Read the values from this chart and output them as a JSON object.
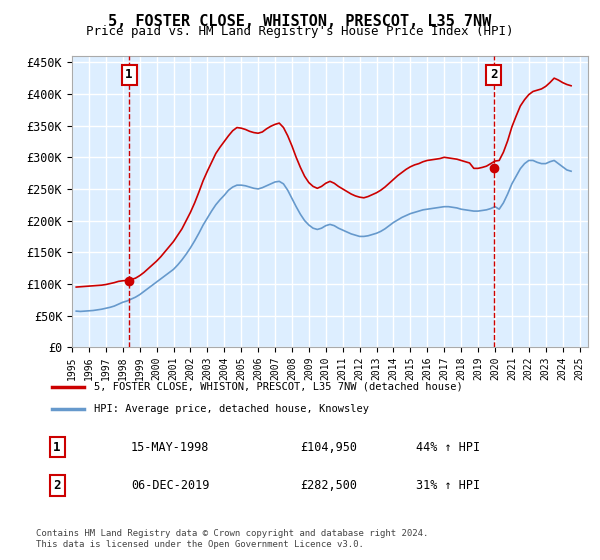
{
  "title": "5, FOSTER CLOSE, WHISTON, PRESCOT, L35 7NW",
  "subtitle": "Price paid vs. HM Land Registry's House Price Index (HPI)",
  "ylabel_format": "£{0}K",
  "yticks": [
    0,
    50000,
    100000,
    150000,
    200000,
    250000,
    300000,
    350000,
    400000,
    450000
  ],
  "ytick_labels": [
    "£0",
    "£50K",
    "£100K",
    "£150K",
    "£200K",
    "£250K",
    "£300K",
    "£350K",
    "£400K",
    "£450K"
  ],
  "xmin": 1995.0,
  "xmax": 2025.5,
  "ymin": 0,
  "ymax": 460000,
  "purchase1_date": 1998.37,
  "purchase1_price": 104950,
  "purchase1_label": "1",
  "purchase1_text": "15-MAY-1998",
  "purchase1_amount": "£104,950",
  "purchase1_hpi": "44% ↑ HPI",
  "purchase2_date": 2019.92,
  "purchase2_price": 282500,
  "purchase2_label": "2",
  "purchase2_text": "06-DEC-2019",
  "purchase2_amount": "£282,500",
  "purchase2_hpi": "31% ↑ HPI",
  "line_color_property": "#cc0000",
  "line_color_hpi": "#6699cc",
  "legend_label_property": "5, FOSTER CLOSE, WHISTON, PRESCOT, L35 7NW (detached house)",
  "legend_label_hpi": "HPI: Average price, detached house, Knowsley",
  "footer_text": "Contains HM Land Registry data © Crown copyright and database right 2024.\nThis data is licensed under the Open Government Licence v3.0.",
  "background_color": "#ddeeff",
  "plot_bg_color": "#ddeeff",
  "grid_color": "#ffffff",
  "hpi_data": {
    "years": [
      1995.25,
      1995.5,
      1995.75,
      1996.0,
      1996.25,
      1996.5,
      1996.75,
      1997.0,
      1997.25,
      1997.5,
      1997.75,
      1998.0,
      1998.25,
      1998.5,
      1998.75,
      1999.0,
      1999.25,
      1999.5,
      1999.75,
      2000.0,
      2000.25,
      2000.5,
      2000.75,
      2001.0,
      2001.25,
      2001.5,
      2001.75,
      2002.0,
      2002.25,
      2002.5,
      2002.75,
      2003.0,
      2003.25,
      2003.5,
      2003.75,
      2004.0,
      2004.25,
      2004.5,
      2004.75,
      2005.0,
      2005.25,
      2005.5,
      2005.75,
      2006.0,
      2006.25,
      2006.5,
      2006.75,
      2007.0,
      2007.25,
      2007.5,
      2007.75,
      2008.0,
      2008.25,
      2008.5,
      2008.75,
      2009.0,
      2009.25,
      2009.5,
      2009.75,
      2010.0,
      2010.25,
      2010.5,
      2010.75,
      2011.0,
      2011.25,
      2011.5,
      2011.75,
      2012.0,
      2012.25,
      2012.5,
      2012.75,
      2013.0,
      2013.25,
      2013.5,
      2013.75,
      2014.0,
      2014.25,
      2014.5,
      2014.75,
      2015.0,
      2015.25,
      2015.5,
      2015.75,
      2016.0,
      2016.25,
      2016.5,
      2016.75,
      2017.0,
      2017.25,
      2017.5,
      2017.75,
      2018.0,
      2018.25,
      2018.5,
      2018.75,
      2019.0,
      2019.25,
      2019.5,
      2019.75,
      2020.0,
      2020.25,
      2020.5,
      2020.75,
      2021.0,
      2021.25,
      2021.5,
      2021.75,
      2022.0,
      2022.25,
      2022.5,
      2022.75,
      2023.0,
      2023.25,
      2023.5,
      2023.75,
      2024.0,
      2024.25,
      2024.5
    ],
    "values": [
      57000,
      56500,
      57000,
      57500,
      58000,
      59000,
      60000,
      61500,
      63000,
      65000,
      68000,
      71000,
      73000,
      76000,
      79000,
      83000,
      88000,
      93000,
      98000,
      103000,
      108000,
      113000,
      118000,
      123000,
      130000,
      138000,
      147000,
      157000,
      168000,
      180000,
      193000,
      204000,
      215000,
      225000,
      233000,
      240000,
      248000,
      253000,
      256000,
      256000,
      255000,
      253000,
      251000,
      250000,
      252000,
      255000,
      258000,
      261000,
      262000,
      258000,
      248000,
      235000,
      222000,
      210000,
      200000,
      193000,
      188000,
      186000,
      188000,
      192000,
      194000,
      192000,
      188000,
      185000,
      182000,
      179000,
      177000,
      175000,
      175000,
      176000,
      178000,
      180000,
      183000,
      187000,
      192000,
      197000,
      201000,
      205000,
      208000,
      211000,
      213000,
      215000,
      217000,
      218000,
      219000,
      220000,
      221000,
      222000,
      222000,
      221000,
      220000,
      218000,
      217000,
      216000,
      215000,
      215000,
      216000,
      217000,
      219000,
      222000,
      218000,
      228000,
      242000,
      258000,
      270000,
      282000,
      290000,
      295000,
      295000,
      292000,
      290000,
      290000,
      293000,
      295000,
      290000,
      285000,
      280000,
      278000
    ]
  },
  "property_data": {
    "years": [
      1995.25,
      1995.5,
      1995.75,
      1996.0,
      1996.25,
      1996.5,
      1996.75,
      1997.0,
      1997.25,
      1997.5,
      1997.75,
      1998.0,
      1998.25,
      1998.5,
      1998.75,
      1999.0,
      1999.25,
      1999.5,
      1999.75,
      2000.0,
      2000.25,
      2000.5,
      2000.75,
      2001.0,
      2001.25,
      2001.5,
      2001.75,
      2002.0,
      2002.25,
      2002.5,
      2002.75,
      2003.0,
      2003.25,
      2003.5,
      2003.75,
      2004.0,
      2004.25,
      2004.5,
      2004.75,
      2005.0,
      2005.25,
      2005.5,
      2005.75,
      2006.0,
      2006.25,
      2006.5,
      2006.75,
      2007.0,
      2007.25,
      2007.5,
      2007.75,
      2008.0,
      2008.25,
      2008.5,
      2008.75,
      2009.0,
      2009.25,
      2009.5,
      2009.75,
      2010.0,
      2010.25,
      2010.5,
      2010.75,
      2011.0,
      2011.25,
      2011.5,
      2011.75,
      2012.0,
      2012.25,
      2012.5,
      2012.75,
      2013.0,
      2013.25,
      2013.5,
      2013.75,
      2014.0,
      2014.25,
      2014.5,
      2014.75,
      2015.0,
      2015.25,
      2015.5,
      2015.75,
      2016.0,
      2016.25,
      2016.5,
      2016.75,
      2017.0,
      2017.25,
      2017.5,
      2017.75,
      2018.0,
      2018.25,
      2018.5,
      2018.75,
      2019.0,
      2019.25,
      2019.5,
      2019.75,
      2020.0,
      2020.25,
      2020.5,
      2020.75,
      2021.0,
      2021.25,
      2021.5,
      2021.75,
      2022.0,
      2022.25,
      2022.5,
      2022.75,
      2023.0,
      2023.25,
      2023.5,
      2023.75,
      2024.0,
      2024.25,
      2024.5
    ],
    "values": [
      95000,
      95500,
      96000,
      96500,
      97000,
      97500,
      98000,
      99000,
      100500,
      102000,
      104000,
      104950,
      105500,
      107000,
      109000,
      113000,
      118000,
      124000,
      130000,
      136000,
      143000,
      151000,
      159000,
      167000,
      177000,
      187000,
      200000,
      213000,
      228000,
      245000,
      263000,
      278000,
      292000,
      306000,
      316000,
      325000,
      334000,
      342000,
      347000,
      346000,
      344000,
      341000,
      339000,
      338000,
      340000,
      345000,
      349000,
      352000,
      354000,
      347000,
      334000,
      318000,
      300000,
      284000,
      270000,
      260000,
      254000,
      251000,
      254000,
      259000,
      262000,
      259000,
      254000,
      250000,
      246000,
      242000,
      239000,
      237000,
      236000,
      238000,
      241000,
      244000,
      248000,
      253000,
      259000,
      265000,
      271000,
      276000,
      281000,
      285000,
      288000,
      290000,
      293000,
      295000,
      296000,
      297000,
      298000,
      300000,
      299000,
      298000,
      297000,
      295000,
      293000,
      291000,
      282500,
      282500,
      284000,
      286000,
      290000,
      294000,
      295000,
      308000,
      326000,
      348000,
      365000,
      381000,
      391000,
      399000,
      404000,
      406000,
      408000,
      412000,
      418000,
      425000,
      422000,
      418000,
      415000,
      413000
    ]
  }
}
